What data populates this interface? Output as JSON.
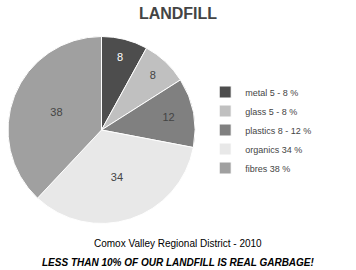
{
  "chart_data": {
    "type": "pie",
    "title": "LANDFILL",
    "categories": [
      "metal 5 - 8 %",
      "glass 5 - 8 %",
      "plastics 8 - 12 %",
      "organics 34 %",
      "fibres 38 %"
    ],
    "values": [
      8,
      8,
      12,
      34,
      38
    ],
    "colors": [
      "#4d4d4d",
      "#c0c0c0",
      "#808080",
      "#e8e8e8",
      "#a0a0a0"
    ],
    "data_labels": true,
    "legend": "right",
    "subtitle": "Comox Valley Regional District - 2010",
    "annotations": [
      "LESS THAN 10% OF OUR LANDFILL IS REAL GARBAGE!"
    ]
  }
}
